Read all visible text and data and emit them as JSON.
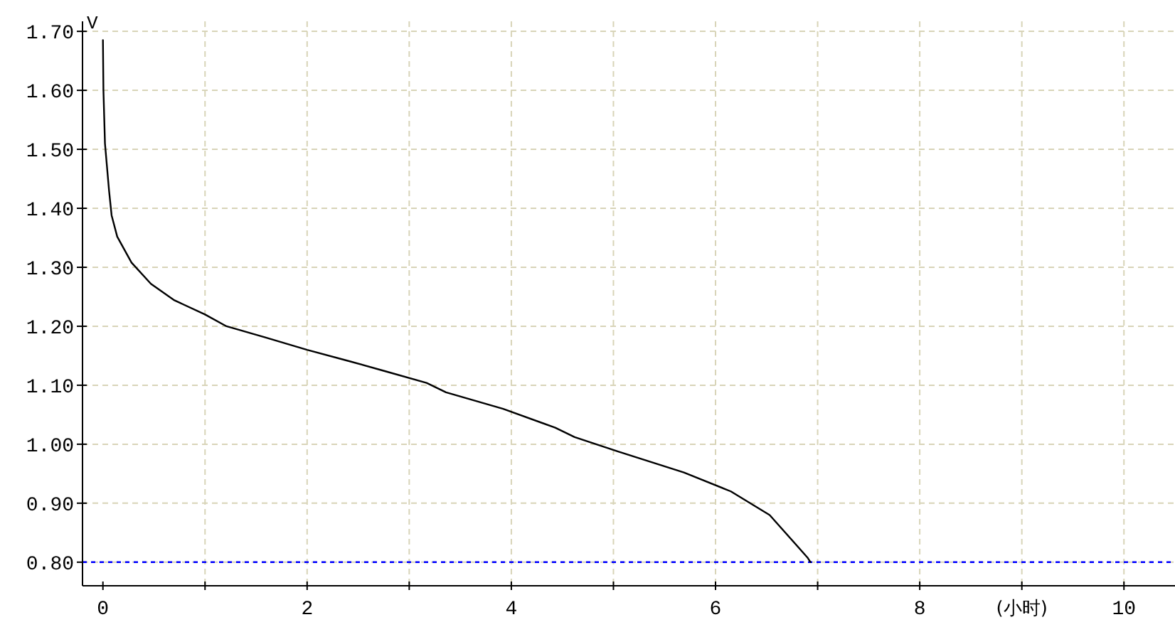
{
  "chart_data": {
    "type": "line",
    "xlabel": "(小时)",
    "ylabel": "V",
    "x": [
      0,
      0.005,
      0.02,
      0.06,
      0.085,
      0.14,
      0.28,
      0.47,
      0.7,
      1.0,
      1.21,
      1.59,
      2.0,
      2.43,
      2.76,
      3.17,
      3.36,
      3.92,
      4.43,
      4.62,
      5.04,
      5.69,
      6.15,
      6.53,
      6.9,
      6.93
    ],
    "series": [
      {
        "color": "#000000",
        "values": [
          1.685,
          1.6,
          1.51,
          1.43,
          1.388,
          1.352,
          1.308,
          1.272,
          1.244,
          1.22,
          1.2,
          1.181,
          1.16,
          1.14,
          1.124,
          1.104,
          1.088,
          1.06,
          1.028,
          1.012,
          0.988,
          0.952,
          0.92,
          0.88,
          0.808,
          0.8
        ]
      }
    ],
    "xlim": [
      -0.2,
      10.5
    ],
    "ylim": [
      0.76,
      1.717
    ],
    "xticks": [
      0,
      {
        "value": 1,
        "label": null
      },
      2,
      {
        "value": 3,
        "label": null
      },
      4,
      {
        "value": 5,
        "label": null
      },
      6,
      {
        "value": 7,
        "label": null
      },
      8,
      {
        "value": 9,
        "label": null
      },
      10
    ],
    "yticks": [
      {
        "value": 0.8,
        "label": "0.80"
      },
      {
        "value": 0.9,
        "label": "0.90"
      },
      {
        "value": 1.0,
        "label": "1.00"
      },
      {
        "value": 1.1,
        "label": "1.10"
      },
      {
        "value": 1.2,
        "label": "1.20"
      },
      {
        "value": 1.3,
        "label": "1.30"
      },
      {
        "value": 1.4,
        "label": "1.40"
      },
      {
        "value": 1.5,
        "label": "1.50"
      },
      {
        "value": 1.6,
        "label": "1.60"
      },
      {
        "value": 1.7,
        "label": "1.70"
      }
    ],
    "grid": true,
    "marker": "none",
    "line_style": "solid",
    "ref_lines": [
      {
        "axis": "y",
        "value": 0.8,
        "color": "#0000ff",
        "line_style": "dotted"
      }
    ]
  }
}
